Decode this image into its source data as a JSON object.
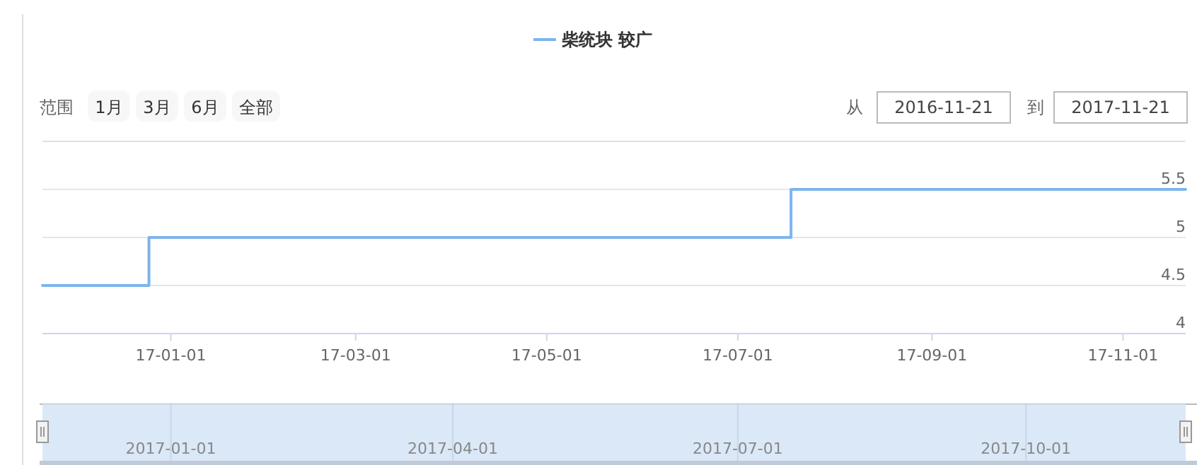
{
  "chart_data": {
    "type": "step",
    "x": [
      "2016-11-21",
      "2016-12-25",
      "2017-07-18",
      "2017-11-21"
    ],
    "series": [
      {
        "name": "柴统块 较广",
        "color": "#7cb5ec",
        "values": [
          4.5,
          5,
          5.5,
          5.5
        ]
      }
    ],
    "xlim": [
      "2016-11-21",
      "2017-11-21"
    ],
    "xticks": [
      {
        "value": "2017-01-01",
        "label": "17-01-01"
      },
      {
        "value": "2017-03-01",
        "label": "17-03-01"
      },
      {
        "value": "2017-05-01",
        "label": "17-05-01"
      },
      {
        "value": "2017-07-01",
        "label": "17-07-01"
      },
      {
        "value": "2017-09-01",
        "label": "17-09-01"
      },
      {
        "value": "2017-11-01",
        "label": "17-11-01"
      }
    ],
    "ylim": [
      4,
      6
    ],
    "yticks": [
      4,
      4.5,
      5,
      5.5
    ],
    "x2lim": [
      "2016-11-21",
      "2017-11-21"
    ],
    "x2ticks": [
      {
        "value": "2017-01-01",
        "label": "2017-01-01"
      },
      {
        "value": "2017-04-01",
        "label": "2017-04-01"
      },
      {
        "value": "2017-07-01",
        "label": "2017-07-01"
      },
      {
        "value": "2017-10-01",
        "label": "2017-10-01"
      }
    ],
    "grid": "y",
    "legend": "top",
    "annotations": [
      "范围",
      "1月",
      "3月",
      "6月",
      "全部",
      "从",
      "2016-11-21",
      "到",
      "2017-11-21"
    ]
  }
}
